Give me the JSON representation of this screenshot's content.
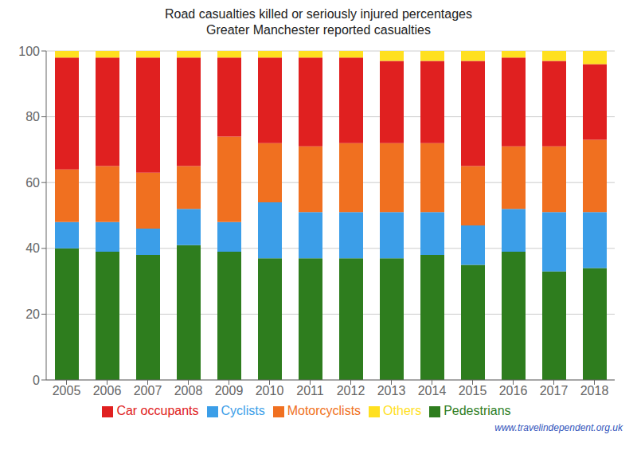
{
  "chart_data": {
    "type": "bar",
    "title": "Road casualties killed or seriously injured percentages",
    "subtitle": "Greater Manchester reported casualties",
    "annotations": [
      "www.travelindependent.org.uk"
    ],
    "categories": [
      "2005",
      "2006",
      "2007",
      "2008",
      "2009",
      "2010",
      "2011",
      "2012",
      "2013",
      "2014",
      "2015",
      "2016",
      "2017",
      "2018"
    ],
    "series": [
      {
        "name": "Pedestrians",
        "color": "#2e7d1e",
        "values": [
          40,
          39,
          38,
          41,
          39,
          37,
          37,
          37,
          37,
          38,
          35,
          39,
          33,
          34
        ]
      },
      {
        "name": "Cyclists",
        "color": "#3b9ee8",
        "values": [
          8,
          9,
          8,
          11,
          9,
          17,
          14,
          14,
          14,
          13,
          12,
          13,
          18,
          17
        ]
      },
      {
        "name": "Motorcyclists",
        "color": "#f07020",
        "values": [
          16,
          17,
          17,
          13,
          26,
          18,
          20,
          21,
          21,
          21,
          18,
          19,
          20,
          22
        ]
      },
      {
        "name": "Car occupants",
        "color": "#e02020",
        "values": [
          34,
          33,
          35,
          33,
          24,
          26,
          27,
          26,
          25,
          25,
          32,
          27,
          26,
          23
        ]
      },
      {
        "name": "Others",
        "color": "#ffe020",
        "values": [
          2,
          2,
          2,
          2,
          2,
          2,
          2,
          2,
          3,
          3,
          3,
          2,
          3,
          4
        ]
      }
    ],
    "ylim": [
      0,
      100
    ],
    "yticks": [
      0,
      20,
      40,
      60,
      80,
      100
    ],
    "stacked": true,
    "grid": true,
    "legend": "bottom"
  }
}
